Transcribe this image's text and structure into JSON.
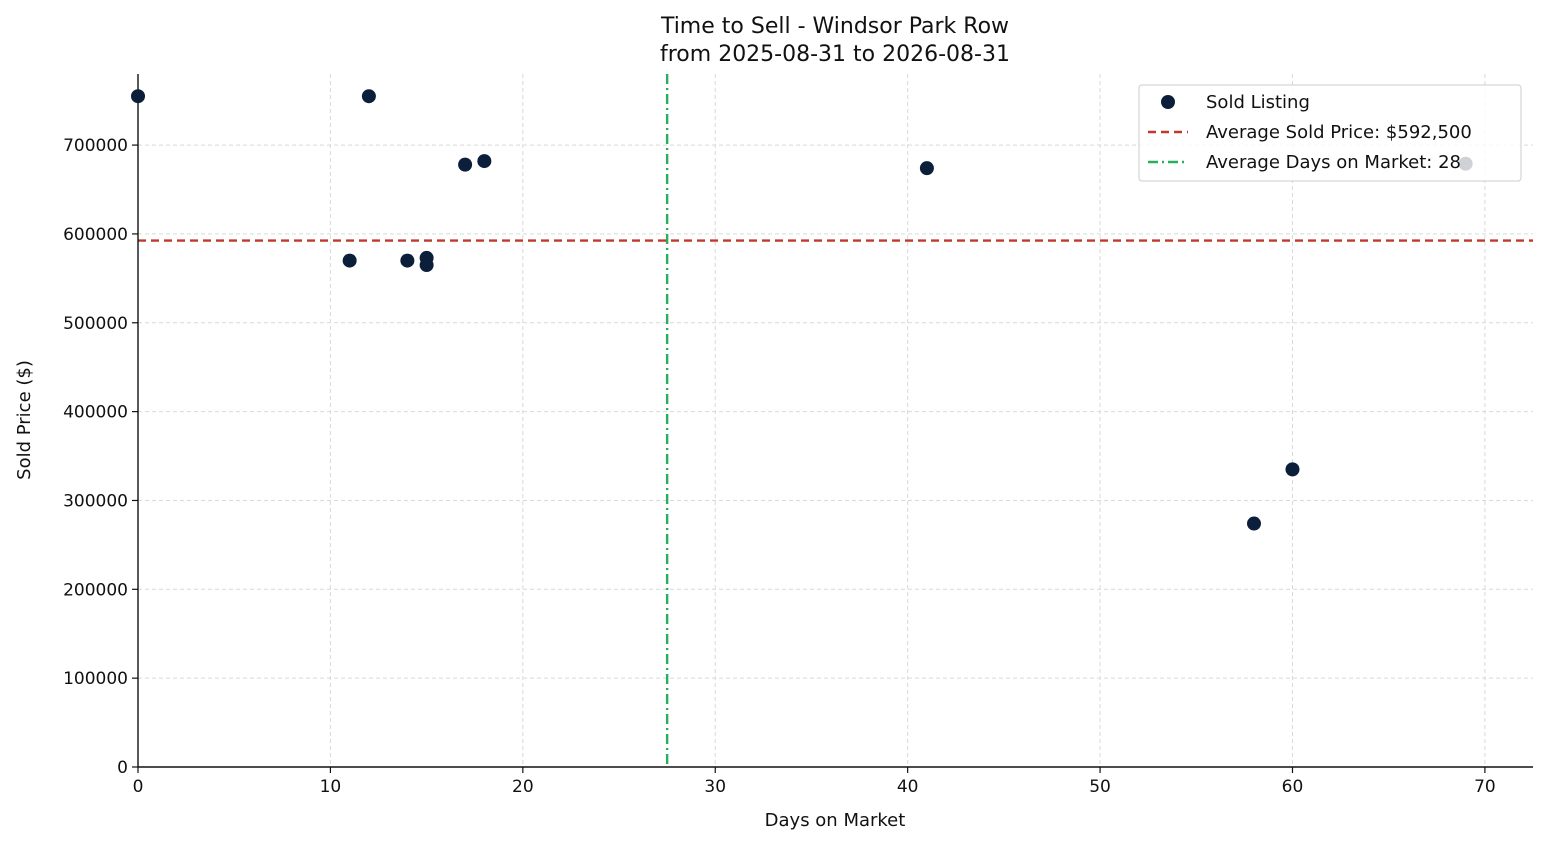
{
  "chart_data": {
    "type": "scatter",
    "title": "Time to Sell - Windsor Park Row",
    "subtitle": "from 2025-08-31 to 2026-08-31",
    "xlabel": "Days on Market",
    "ylabel": "Sold Price ($)",
    "xlim": [
      0,
      72.5
    ],
    "ylim": [
      0,
      780000
    ],
    "xticks": [
      0,
      10,
      20,
      30,
      40,
      50,
      60,
      70
    ],
    "yticks": [
      0,
      100000,
      200000,
      300000,
      400000,
      500000,
      600000,
      700000
    ],
    "grid": true,
    "legend_position": "top-right",
    "series": [
      {
        "name": "Sold Listing",
        "color": "#0b1e3a",
        "points": [
          {
            "x": 0,
            "y": 755000
          },
          {
            "x": 11,
            "y": 570000
          },
          {
            "x": 12,
            "y": 755000
          },
          {
            "x": 14,
            "y": 570000
          },
          {
            "x": 15,
            "y": 573000
          },
          {
            "x": 15,
            "y": 565000
          },
          {
            "x": 17,
            "y": 678000
          },
          {
            "x": 18,
            "y": 682000
          },
          {
            "x": 41,
            "y": 674000
          },
          {
            "x": 58,
            "y": 274000
          },
          {
            "x": 60,
            "y": 335000
          },
          {
            "x": 69,
            "y": 679000
          }
        ]
      }
    ],
    "reference_lines": [
      {
        "name": "Average Sold Price: $592,500",
        "orientation": "horizontal",
        "value": 592500,
        "color": "#c0392b",
        "style": "dashed"
      },
      {
        "name": "Average Days on Market: 28",
        "orientation": "vertical",
        "value": 27.5,
        "color": "#27ae60",
        "style": "dashdot"
      }
    ]
  }
}
